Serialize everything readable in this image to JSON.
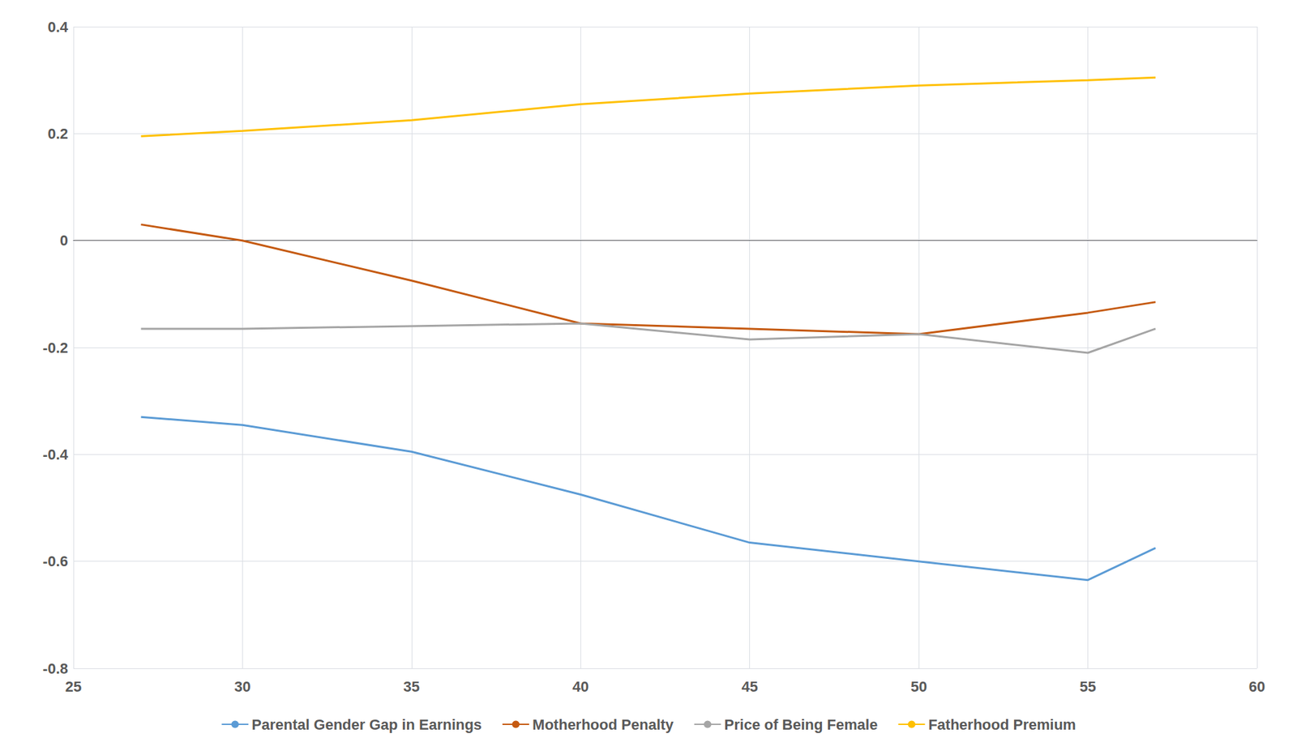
{
  "chart_data": {
    "type": "line",
    "x": [
      27,
      30,
      35,
      40,
      45,
      50,
      55,
      57
    ],
    "series": [
      {
        "name": "Parental Gender Gap in Earnings",
        "color": "#5B9BD5",
        "values": [
          -0.33,
          -0.345,
          -0.395,
          -0.475,
          -0.565,
          -0.6,
          -0.635,
          -0.575
        ]
      },
      {
        "name": "Motherhood Penalty",
        "color": "#C55A11",
        "values": [
          0.03,
          0.0,
          -0.075,
          -0.155,
          -0.165,
          -0.175,
          -0.135,
          -0.115
        ]
      },
      {
        "name": "Price of Being Female",
        "color": "#A5A5A5",
        "values": [
          -0.165,
          -0.165,
          -0.16,
          -0.155,
          -0.185,
          -0.175,
          -0.21,
          -0.165
        ]
      },
      {
        "name": "Fatherhood Premium",
        "color": "#FFC000",
        "values": [
          0.195,
          0.205,
          0.225,
          0.255,
          0.275,
          0.29,
          0.3,
          0.305
        ]
      }
    ],
    "xlim": [
      25,
      60
    ],
    "xticks": [
      25,
      30,
      35,
      40,
      45,
      50,
      55,
      60
    ],
    "ylim": [
      -0.8,
      0.4
    ],
    "yticks": [
      -0.8,
      -0.6,
      -0.4,
      -0.2,
      0,
      0.2,
      0.4
    ],
    "grid": true,
    "legend": "bottom"
  }
}
